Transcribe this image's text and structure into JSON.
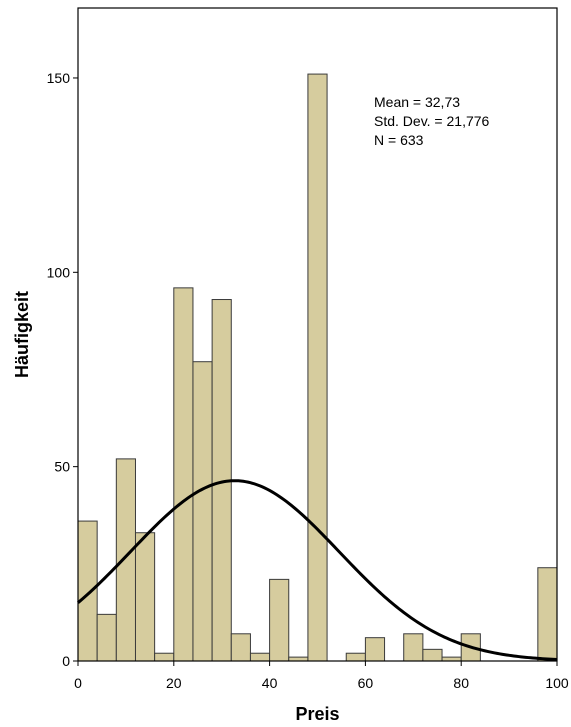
{
  "chart_data": {
    "type": "bar",
    "xlabel": "Preis",
    "ylabel": "Häufigkeit",
    "xlim": [
      0,
      100
    ],
    "ylim": [
      0,
      168
    ],
    "bin_width": 4,
    "bins": [
      {
        "x0": 0,
        "x1": 4,
        "count": 36
      },
      {
        "x0": 4,
        "x1": 8,
        "count": 12
      },
      {
        "x0": 8,
        "x1": 12,
        "count": 52
      },
      {
        "x0": 12,
        "x1": 16,
        "count": 33
      },
      {
        "x0": 16,
        "x1": 20,
        "count": 2
      },
      {
        "x0": 20,
        "x1": 24,
        "count": 96
      },
      {
        "x0": 24,
        "x1": 28,
        "count": 77
      },
      {
        "x0": 28,
        "x1": 32,
        "count": 93
      },
      {
        "x0": 32,
        "x1": 36,
        "count": 7
      },
      {
        "x0": 36,
        "x1": 40,
        "count": 2
      },
      {
        "x0": 40,
        "x1": 44,
        "count": 21
      },
      {
        "x0": 44,
        "x1": 48,
        "count": 1
      },
      {
        "x0": 48,
        "x1": 52,
        "count": 151
      },
      {
        "x0": 52,
        "x1": 56,
        "count": 0
      },
      {
        "x0": 56,
        "x1": 60,
        "count": 2
      },
      {
        "x0": 60,
        "x1": 64,
        "count": 6
      },
      {
        "x0": 64,
        "x1": 68,
        "count": 0
      },
      {
        "x0": 68,
        "x1": 72,
        "count": 7
      },
      {
        "x0": 72,
        "x1": 76,
        "count": 3
      },
      {
        "x0": 76,
        "x1": 80,
        "count": 1
      },
      {
        "x0": 80,
        "x1": 84,
        "count": 7
      },
      {
        "x0": 84,
        "x1": 88,
        "count": 0
      },
      {
        "x0": 88,
        "x1": 92,
        "count": 0
      },
      {
        "x0": 92,
        "x1": 96,
        "count": 0
      },
      {
        "x0": 96,
        "x1": 100,
        "count": 24
      }
    ],
    "x_ticks": [
      0,
      20,
      40,
      60,
      80,
      100
    ],
    "y_ticks": [
      0,
      50,
      100,
      150
    ],
    "normal_curve": {
      "mean": 32.73,
      "sd": 21.776,
      "n": 633
    },
    "stats_lines": [
      "Mean = 32,73",
      "Std. Dev. = 21,776",
      "N = 633"
    ],
    "colors": {
      "bar_fill": "#d6cc9e",
      "bar_stroke": "#3a3a3a",
      "curve": "#000000",
      "frame": "#000000"
    },
    "grid": false
  }
}
